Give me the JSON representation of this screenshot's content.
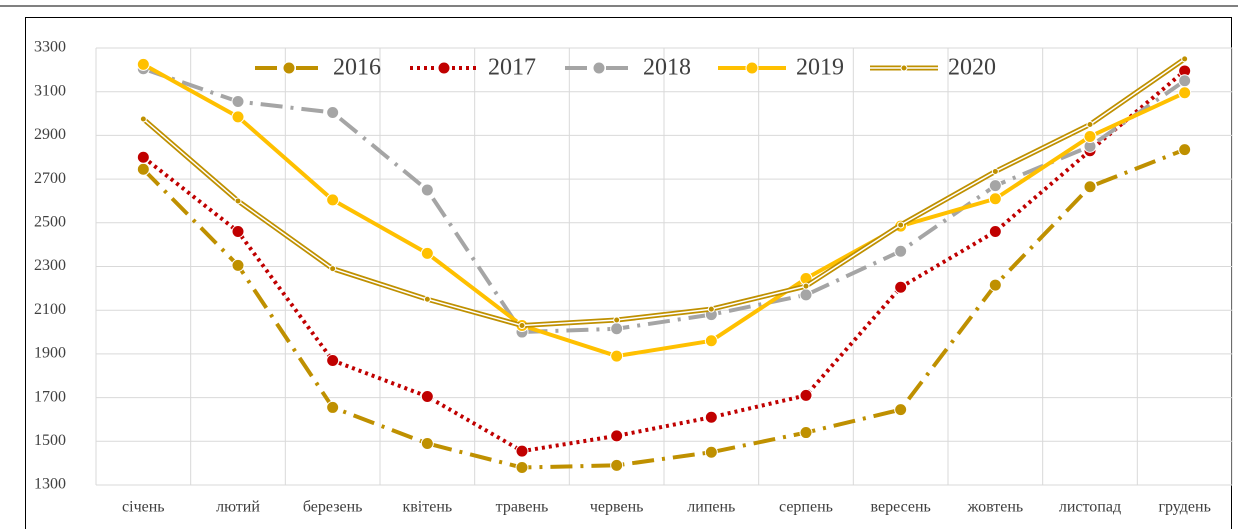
{
  "chart_data": {
    "type": "line",
    "categories": [
      "січень",
      "лютий",
      "березень",
      "квітень",
      "травень",
      "червень",
      "липень",
      "серпень",
      "вересень",
      "жовтень",
      "листопад",
      "грудень"
    ],
    "series": [
      {
        "name": "2016",
        "color": "#bf9000",
        "values": [
          2745,
          2305,
          1655,
          1490,
          1380,
          1390,
          1450,
          1540,
          1645,
          2215,
          2665,
          2835
        ]
      },
      {
        "name": "2017",
        "color": "#c00000",
        "values": [
          2800,
          2460,
          1870,
          1705,
          1455,
          1525,
          1610,
          1710,
          2205,
          2460,
          2830,
          3195
        ]
      },
      {
        "name": "2018",
        "color": "#a5a5a5",
        "values": [
          3205,
          3055,
          3005,
          2650,
          2000,
          2015,
          2080,
          2170,
          2370,
          2670,
          2850,
          3150
        ]
      },
      {
        "name": "2019",
        "color": "#ffc000",
        "values": [
          3225,
          2985,
          2605,
          2360,
          2030,
          1890,
          1960,
          2245,
          2485,
          2610,
          2895,
          3095
        ]
      },
      {
        "name": "2020",
        "color": "#bf9000",
        "values": [
          2975,
          2600,
          2290,
          2150,
          2030,
          2055,
          2105,
          2210,
          2490,
          2735,
          2950,
          3250
        ]
      }
    ],
    "ylim": [
      1300,
      3300
    ],
    "yticks": [
      1300,
      1500,
      1700,
      1900,
      2100,
      2300,
      2500,
      2700,
      2900,
      3100,
      3300
    ],
    "grid": true,
    "legend": "top"
  }
}
